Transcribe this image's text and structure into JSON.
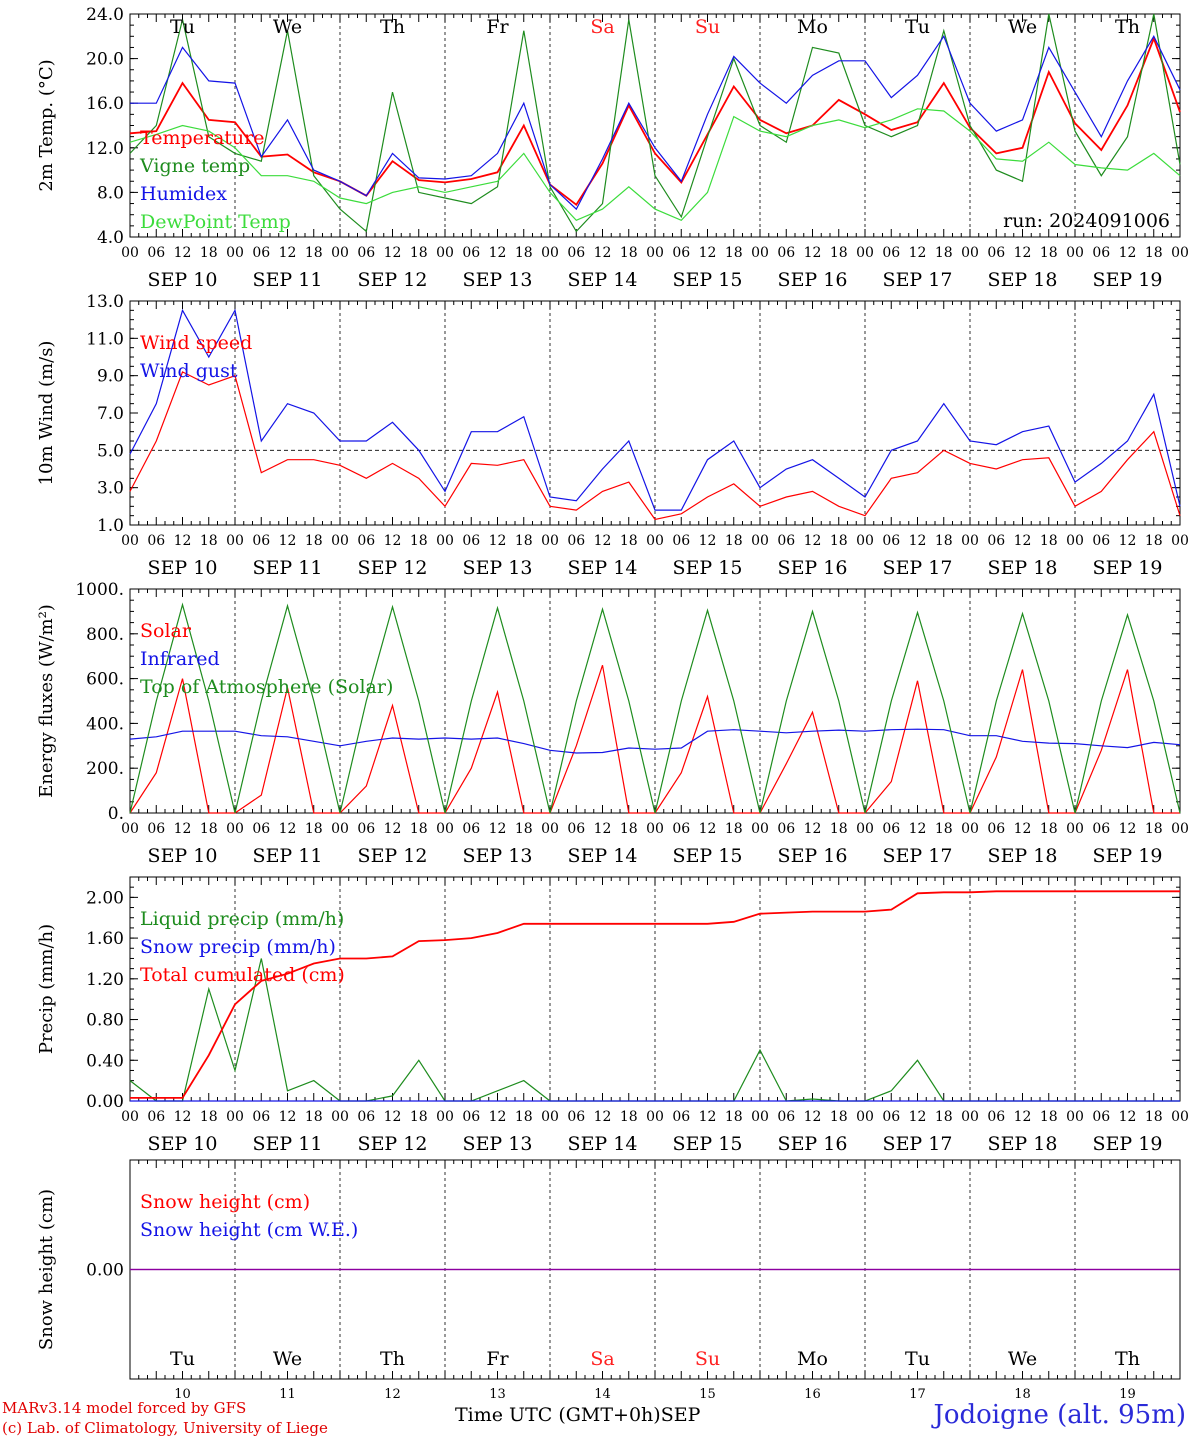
{
  "station": "Jodoigne (alt. 95m)",
  "credits": [
    "MARv3.14 model forced by GFS",
    "(c) Lab. of Climatology, University of Liege"
  ],
  "xaxis_label": "Time UTC (GMT+0h)",
  "month_label": "SEP",
  "run_label": "run: 2024091006",
  "dates": [
    "SEP 10",
    "SEP 11",
    "SEP 12",
    "SEP 13",
    "SEP 14",
    "SEP 15",
    "SEP 16",
    "SEP 17",
    "SEP 18",
    "SEP 19"
  ],
  "days": [
    "Tu",
    "We",
    "Th",
    "Fr",
    "Sa",
    "Su",
    "Mo",
    "Tu",
    "We",
    "Th"
  ],
  "day_numbers": [
    "10",
    "11",
    "12",
    "13",
    "14",
    "15",
    "16",
    "17",
    "18",
    "19"
  ],
  "hour_ticks": [
    "00",
    "06",
    "12",
    "18"
  ],
  "last_tick": "00",
  "colors": {
    "red": "#ff0000",
    "darkgreen": "#1e8c1e",
    "blue": "#1414e6",
    "lightgreen": "#3cdc3c",
    "weekend": "#ff2020",
    "purple": "#8c00a0"
  },
  "chart_data": [
    {
      "type": "line",
      "id": "temp",
      "ylabel": "2m Temp. (°C)",
      "yticks": [
        "4.0",
        "8.0",
        "12.0",
        "16.0",
        "20.0",
        "24.0"
      ],
      "ylim": [
        4,
        24
      ],
      "legend": [
        "Temperature",
        "Vigne temp",
        "Humidex",
        "DewPoint Temp"
      ],
      "x_hours": [
        0,
        6,
        12,
        18,
        24,
        30,
        36,
        42,
        48,
        54,
        60,
        66,
        72,
        78,
        84,
        90,
        96,
        102,
        108,
        114,
        120,
        126,
        132,
        138,
        144,
        150,
        156,
        162,
        168,
        174,
        180,
        186,
        192,
        198,
        204,
        210,
        216,
        222,
        228,
        234,
        240
      ],
      "series": [
        {
          "name": "Temperature",
          "values": [
            13.3,
            13.5,
            17.8,
            14.5,
            14.3,
            11.2,
            11.4,
            9.8,
            9.0,
            7.7,
            10.8,
            9.1,
            8.9,
            9.2,
            9.8,
            14.0,
            8.7,
            6.9,
            10.6,
            15.8,
            11.5,
            8.9,
            13.2,
            17.5,
            14.5,
            13.3,
            14.0,
            16.3,
            15.0,
            13.6,
            14.3,
            17.8,
            13.8,
            11.5,
            12.0,
            18.8,
            14.2,
            11.8,
            15.8,
            21.8,
            15.2
          ]
        },
        {
          "name": "Vigne temp",
          "values": [
            11.5,
            14.0,
            23.5,
            13.0,
            11.5,
            10.8,
            22.5,
            9.5,
            6.5,
            4.5,
            17.0,
            8.0,
            7.5,
            7.0,
            8.5,
            22.5,
            8.5,
            4.5,
            7.0,
            23.5,
            9.5,
            5.8,
            13.0,
            20.0,
            14.0,
            12.5,
            21.0,
            20.5,
            14.0,
            13.0,
            14.0,
            22.5,
            14.0,
            10.0,
            9.0,
            24.0,
            13.5,
            9.5,
            13.0,
            24.0,
            10.5
          ]
        },
        {
          "name": "Humidex",
          "values": [
            16.0,
            16.0,
            21.0,
            18.0,
            17.8,
            11.2,
            14.5,
            10.0,
            9.0,
            7.7,
            11.5,
            9.3,
            9.2,
            9.5,
            11.5,
            16.0,
            8.7,
            6.5,
            11.0,
            16.0,
            12.0,
            9.0,
            15.0,
            20.2,
            17.8,
            16.0,
            18.5,
            19.8,
            19.8,
            16.5,
            18.5,
            22.0,
            16.0,
            13.5,
            14.5,
            21.0,
            17.0,
            13.0,
            18.0,
            22.0,
            17.2
          ]
        },
        {
          "name": "DewPoint Temp",
          "values": [
            12.5,
            13.2,
            14.0,
            13.5,
            12.0,
            9.5,
            9.5,
            9.0,
            7.5,
            7.0,
            8.0,
            8.5,
            8.0,
            8.5,
            9.0,
            11.5,
            8.0,
            5.5,
            6.5,
            8.5,
            6.5,
            5.5,
            8.0,
            14.8,
            13.5,
            13.0,
            14.0,
            14.5,
            13.8,
            14.5,
            15.5,
            15.3,
            13.5,
            11.0,
            10.8,
            12.5,
            10.5,
            10.2,
            10.0,
            11.5,
            9.5
          ]
        }
      ]
    },
    {
      "type": "line",
      "id": "wind",
      "ylabel": "10m Wind (m/s)",
      "yticks": [
        "1.0",
        "3.0",
        "5.0",
        "7.0",
        "9.0",
        "11.0",
        "13.0"
      ],
      "ylim": [
        1,
        13
      ],
      "ref_line": 5.0,
      "legend": [
        "Wind speed",
        "Wind gust"
      ],
      "x_hours": [
        0,
        6,
        12,
        18,
        24,
        30,
        36,
        42,
        48,
        54,
        60,
        66,
        72,
        78,
        84,
        90,
        96,
        102,
        108,
        114,
        120,
        126,
        132,
        138,
        144,
        150,
        156,
        162,
        168,
        174,
        180,
        186,
        192,
        198,
        204,
        210,
        216,
        222,
        228,
        234,
        240
      ],
      "series": [
        {
          "name": "Wind speed",
          "values": [
            2.8,
            5.5,
            9.2,
            8.5,
            9.0,
            3.8,
            4.5,
            4.5,
            4.2,
            3.5,
            4.3,
            3.5,
            2.0,
            4.3,
            4.2,
            4.5,
            2.0,
            1.8,
            2.8,
            3.3,
            1.3,
            1.6,
            2.5,
            3.2,
            2.0,
            2.5,
            2.8,
            2.0,
            1.5,
            3.5,
            3.8,
            5.0,
            4.3,
            4.0,
            4.5,
            4.6,
            2.0,
            2.8,
            4.5,
            6.0,
            1.5
          ]
        },
        {
          "name": "Wind gust",
          "values": [
            4.8,
            7.5,
            12.5,
            10.0,
            12.5,
            5.5,
            7.5,
            7.0,
            5.5,
            5.5,
            6.5,
            5.0,
            2.8,
            6.0,
            6.0,
            6.8,
            2.5,
            2.3,
            4.0,
            5.5,
            1.8,
            1.8,
            4.5,
            5.5,
            3.0,
            4.0,
            4.5,
            3.5,
            2.5,
            5.0,
            5.5,
            7.5,
            5.5,
            5.3,
            6.0,
            6.3,
            3.3,
            4.3,
            5.5,
            8.0,
            2.0
          ]
        }
      ]
    },
    {
      "type": "line",
      "id": "energy",
      "ylabel": "Energy fluxes (W/m²)",
      "yticks": [
        "0.",
        "200.",
        "400.",
        "600.",
        "800.",
        "1000."
      ],
      "ylim": [
        0,
        1000
      ],
      "legend": [
        "Solar",
        "Infrared",
        "Top of Atmosphere (Solar)"
      ],
      "x_hours": [
        0,
        6,
        12,
        18,
        24,
        30,
        36,
        42,
        48,
        54,
        60,
        66,
        72,
        78,
        84,
        90,
        96,
        102,
        108,
        114,
        120,
        126,
        132,
        138,
        144,
        150,
        156,
        162,
        168,
        174,
        180,
        186,
        192,
        198,
        204,
        210,
        216,
        222,
        228,
        234,
        240
      ],
      "series": [
        {
          "name": "Solar",
          "values": [
            0,
            180,
            600,
            0,
            0,
            80,
            560,
            0,
            0,
            120,
            480,
            0,
            0,
            200,
            540,
            0,
            0,
            300,
            660,
            0,
            0,
            180,
            520,
            0,
            0,
            220,
            450,
            0,
            0,
            140,
            590,
            0,
            0,
            250,
            640,
            0,
            0,
            280,
            640,
            0,
            0
          ]
        },
        {
          "name": "Infrared",
          "values": [
            330,
            340,
            365,
            365,
            365,
            345,
            340,
            320,
            300,
            320,
            335,
            330,
            335,
            330,
            335,
            310,
            280,
            268,
            270,
            290,
            285,
            290,
            365,
            372,
            365,
            358,
            365,
            370,
            365,
            372,
            374,
            372,
            345,
            345,
            320,
            312,
            310,
            300,
            292,
            315,
            305
          ]
        },
        {
          "name": "Top of Atmosphere (Solar)",
          "values": [
            0,
            500,
            930,
            500,
            0,
            500,
            925,
            500,
            0,
            500,
            920,
            500,
            0,
            500,
            915,
            500,
            0,
            500,
            910,
            500,
            0,
            500,
            905,
            500,
            0,
            500,
            900,
            500,
            0,
            500,
            895,
            500,
            0,
            500,
            890,
            500,
            0,
            500,
            885,
            500,
            0
          ]
        }
      ]
    },
    {
      "type": "line",
      "id": "precip",
      "ylabel": "Precip (mm/h)",
      "yticks": [
        "0.00",
        "0.40",
        "0.80",
        "1.20",
        "1.60",
        "2.00"
      ],
      "ylim": [
        0,
        2.2
      ],
      "legend": [
        "Liquid precip (mm/h)",
        "Snow precip (mm/h)",
        "Total cumulated (cm)"
      ],
      "x_hours": [
        0,
        6,
        12,
        18,
        24,
        30,
        36,
        42,
        48,
        54,
        60,
        66,
        72,
        78,
        84,
        90,
        96,
        102,
        108,
        114,
        120,
        126,
        132,
        138,
        144,
        150,
        156,
        162,
        168,
        174,
        180,
        186,
        192,
        198,
        204,
        210,
        216,
        222,
        228,
        234,
        240
      ],
      "series": [
        {
          "name": "Liquid precip (mm/h)",
          "values": [
            0.2,
            0,
            0,
            1.1,
            0.3,
            1.4,
            0.1,
            0.2,
            0,
            0,
            0.05,
            0.4,
            0,
            0,
            0.1,
            0.2,
            0,
            0,
            0,
            0,
            0,
            0,
            0,
            0,
            0.5,
            0,
            0.02,
            0,
            0,
            0.1,
            0.4,
            0,
            0,
            0,
            0,
            0,
            0,
            0,
            0,
            0,
            0
          ]
        },
        {
          "name": "Snow precip (mm/h)",
          "values": [
            0,
            0,
            0,
            0,
            0,
            0,
            0,
            0,
            0,
            0,
            0,
            0,
            0,
            0,
            0,
            0,
            0,
            0,
            0,
            0,
            0,
            0,
            0,
            0,
            0,
            0,
            0,
            0,
            0,
            0,
            0,
            0,
            0,
            0,
            0,
            0,
            0,
            0,
            0,
            0,
            0
          ]
        },
        {
          "name": "Total cumulated (cm)",
          "values": [
            0.03,
            0.03,
            0.03,
            0.45,
            0.95,
            1.18,
            1.25,
            1.35,
            1.4,
            1.4,
            1.42,
            1.57,
            1.58,
            1.6,
            1.65,
            1.74,
            1.74,
            1.74,
            1.74,
            1.74,
            1.74,
            1.74,
            1.74,
            1.76,
            1.84,
            1.85,
            1.86,
            1.86,
            1.86,
            1.88,
            2.04,
            2.05,
            2.05,
            2.06,
            2.06,
            2.06,
            2.06,
            2.06,
            2.06,
            2.06,
            2.06
          ]
        }
      ]
    },
    {
      "type": "line",
      "id": "snow",
      "ylabel": "Snow height (cm)",
      "yticks": [
        "0.00"
      ],
      "ylim": [
        -1,
        1
      ],
      "legend": [
        "Snow height (cm)",
        "Snow height (cm W.E.)"
      ],
      "x_hours": [
        0,
        240
      ],
      "series": [
        {
          "name": "Snow height (cm)",
          "values": [
            0,
            0
          ]
        },
        {
          "name": "Snow height (cm W.E.)",
          "values": [
            0,
            0
          ]
        }
      ]
    }
  ]
}
